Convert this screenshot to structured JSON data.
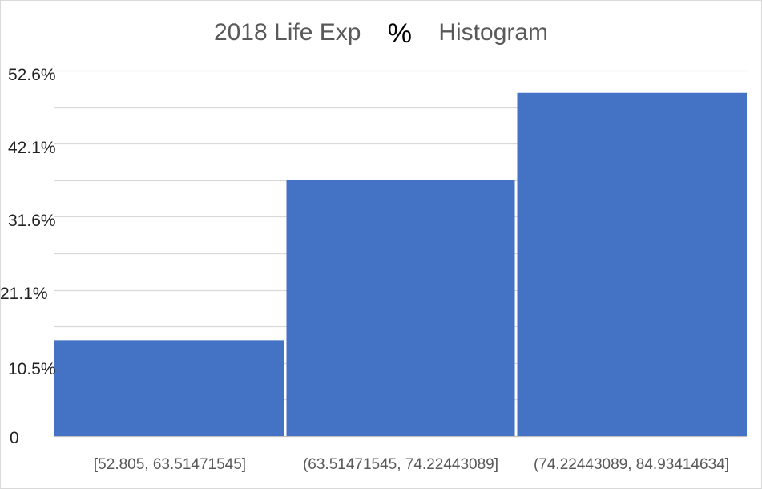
{
  "chart_data": {
    "type": "bar",
    "title_parts": [
      "2018 Life Exp",
      "%",
      "Histogram"
    ],
    "categories": [
      "[52.805, 63.51471545]",
      "(63.51471545, 74.22443089]",
      "(74.22443089, 84.93414634]"
    ],
    "values": [
      13.8,
      36.8,
      49.4
    ],
    "yticks": [
      {
        "label": "0",
        "value": 0
      },
      {
        "label": "10.5%",
        "value": 10.5
      },
      {
        "label": "21.1%",
        "value": 21.1
      },
      {
        "label": "31.6%",
        "value": 31.6
      },
      {
        "label": "42.1%",
        "value": 42.1
      },
      {
        "label": "52.6%",
        "value": 52.6
      }
    ],
    "ylim": [
      0,
      52.6
    ],
    "grid": true,
    "bar_color": "#4472c4",
    "grid_color": "#d9d9d9"
  }
}
